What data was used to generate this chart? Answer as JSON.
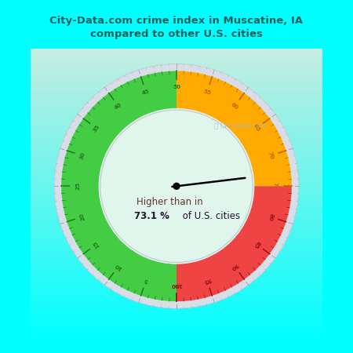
{
  "title": "City-Data.com crime index in Muscatine, IA\ncompared to other U.S. cities",
  "title_color": "#1a6060",
  "background_top": "#00FFFF",
  "background_bottom": "#c8ede0",
  "gauge_bg_color": "#e0f5ec",
  "needle_value": 73.1,
  "center_text_line1": "Higher than in",
  "center_text_line2_bold": "73.1 %",
  "center_text_line2_normal": " of U.S. cities",
  "green_range": [
    0,
    50
  ],
  "orange_range": [
    50,
    75
  ],
  "red_range": [
    75,
    100
  ],
  "green_color": "#44cc44",
  "orange_color": "#ffaa00",
  "red_color": "#ee4444",
  "outer_ring_color": "#d8dde8",
  "inner_ring_color": "#e8eef0",
  "tick_color_green": "#227722",
  "tick_color_orange": "#bb6600",
  "tick_color_red": "#991111",
  "text_color1": "#663333",
  "text_color2": "#221133",
  "watermark_color": "#99bbcc",
  "min_val": 0,
  "max_val": 100
}
